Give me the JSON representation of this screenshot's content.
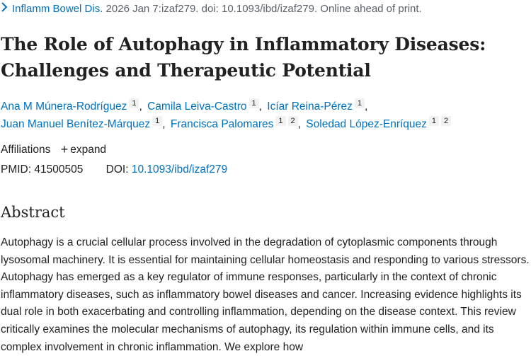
{
  "citation": {
    "journal_link": "Inflamm Bowel Dis.",
    "details": " 2026 Jan 7:izaf279. doi: 10.1093/ibd/izaf279. Online ahead of print."
  },
  "title": "The Role of Autophagy in Inflammatory Diseases: Challenges and Therapeutic Potential",
  "authors": [
    {
      "name": "Ana M Múnera-Rodríguez",
      "affil": "1"
    },
    {
      "name": "Camila Leiva-Castro",
      "affil": "1"
    },
    {
      "name": "Icíar Reina-Pérez",
      "affil": "1"
    },
    {
      "name": "Juan Manuel Benítez-Márquez",
      "affil": "1"
    },
    {
      "name": "Francisca Palomares",
      "affil1": "1",
      "affil2": "2"
    },
    {
      "name": "Soledad López-Enríquez",
      "affil1": "1",
      "affil2": "2"
    }
  ],
  "affiliations": {
    "label": "Affiliations",
    "expand_label": "expand"
  },
  "identifiers": {
    "pmid_text": "PMID: 41500505",
    "doi_label": "DOI:",
    "doi_link": "10.1093/ibd/izaf279"
  },
  "abstract": {
    "heading": "Abstract",
    "text": "Autophagy is a crucial cellular process involved in the degradation of cytoplasmic components through lysosomal machinery. It is essential for maintaining cellular homeostasis and responding to various stressors. Autophagy has emerged as a key regulator of immune responses, particularly in the context of chronic inflammatory diseases, such as inflammatory bowel diseases and cancer. Increasing evidence highlights its dual role in both exacerbating and controlling inflammation, depending on the disease context. This review critically examines the molecular mechanisms of autophagy, its regulation within immune cells, and its complex involvement in chronic inflammation. We explore how"
  },
  "colors": {
    "link": "#0071bc",
    "text": "#212121",
    "muted": "#5b616b",
    "badge_bg": "#f1f1f1"
  },
  "icons": {
    "citation_toggle": "chevron-right-icon",
    "expand": "plus-icon"
  }
}
